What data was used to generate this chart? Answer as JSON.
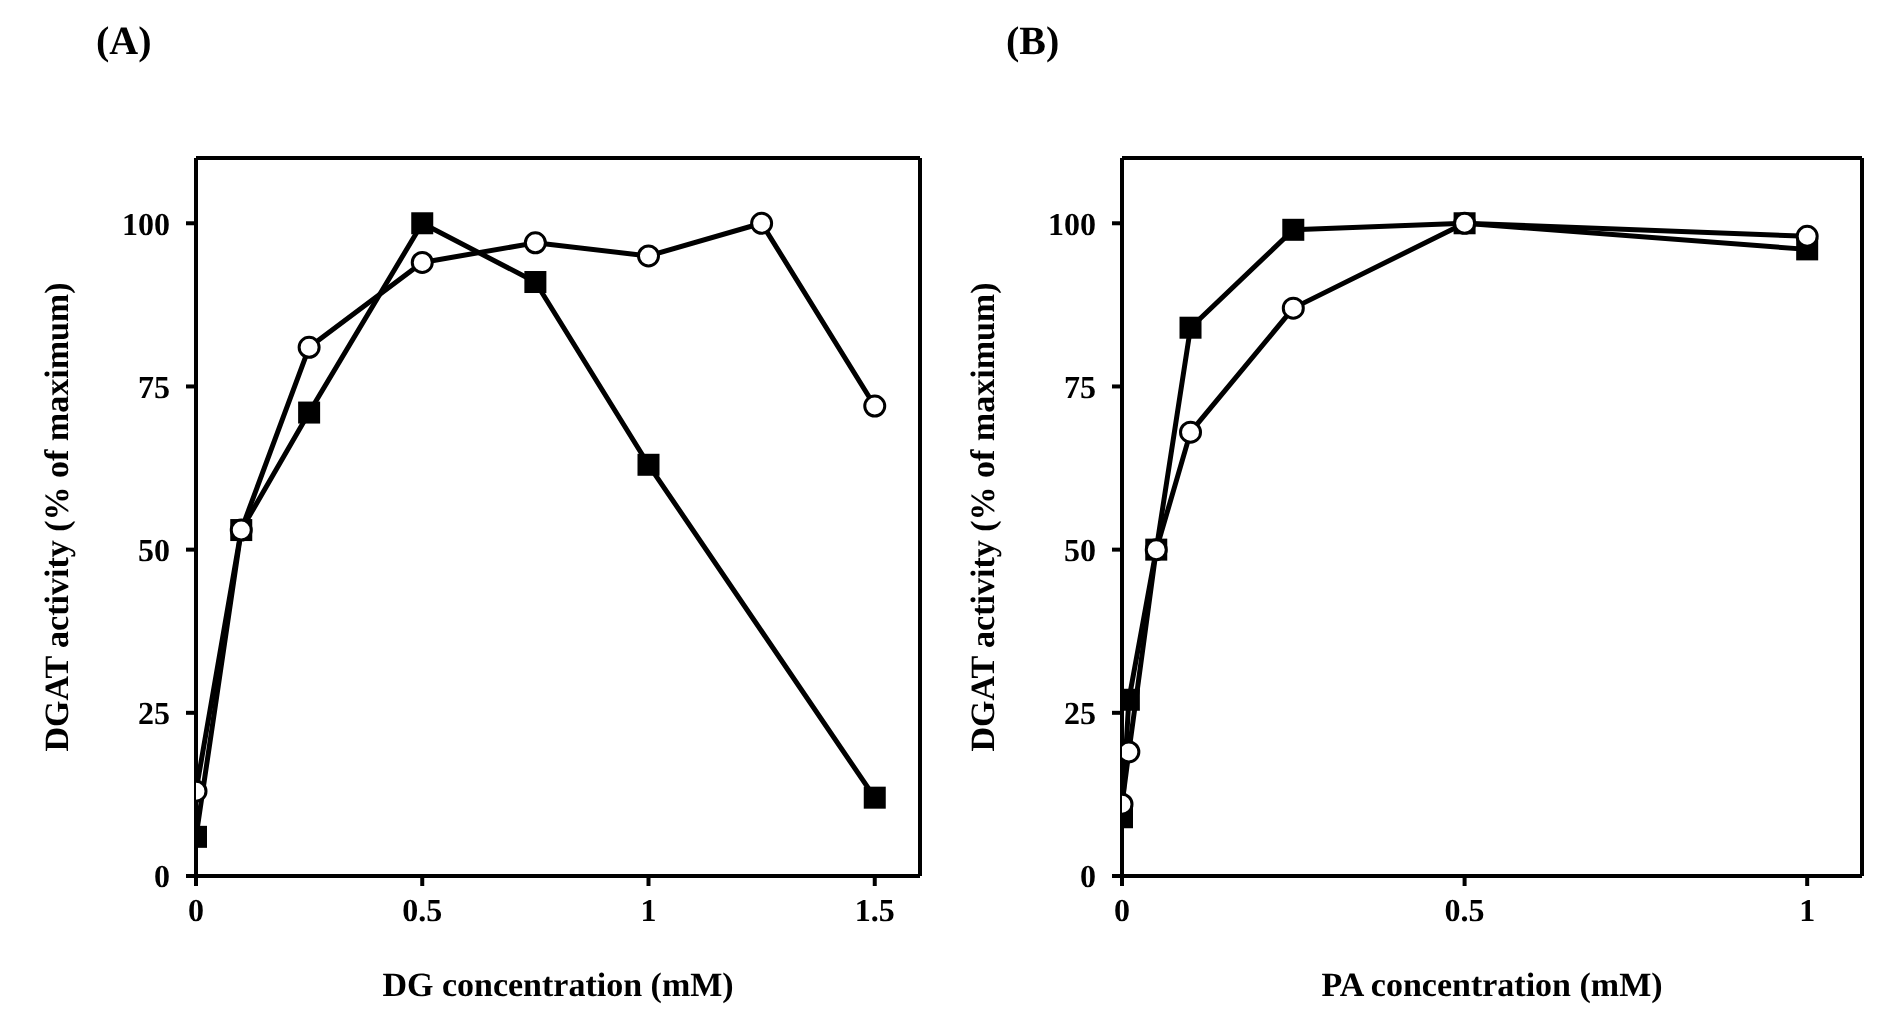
{
  "chart_data": [
    {
      "type": "line",
      "title": "(A)",
      "xlabel": "DG concentration (mM)",
      "ylabel": "DGAT activity (% of maximum)",
      "xlim": [
        0,
        1.6
      ],
      "ylim": [
        0,
        110
      ],
      "xticks": [
        0,
        0.5,
        1,
        1.5
      ],
      "yticks": [
        0,
        25,
        50,
        75,
        100
      ],
      "grid": false,
      "series": [
        {
          "color": "#000000",
          "marker": "square",
          "x": [
            0,
            0.1,
            0.25,
            0.5,
            0.75,
            1,
            1.5
          ],
          "values": [
            6,
            53,
            71,
            100,
            91,
            63,
            12
          ]
        },
        {
          "color": "#000000",
          "marker": "circle",
          "x": [
            0,
            0.1,
            0.25,
            0.5,
            0.75,
            1,
            1.25,
            1.5
          ],
          "values": [
            13,
            53,
            81,
            94,
            97,
            95,
            100,
            72
          ]
        }
      ]
    },
    {
      "type": "line",
      "title": "(B)",
      "xlabel": "PA concentration (mM)",
      "ylabel": "DGAT activity (% of maximum)",
      "xlim": [
        0,
        1.08
      ],
      "ylim": [
        0,
        110
      ],
      "xticks": [
        0,
        0.5,
        1
      ],
      "yticks": [
        0,
        25,
        50,
        75,
        100
      ],
      "grid": false,
      "series": [
        {
          "color": "#000000",
          "marker": "square",
          "x": [
            0,
            0.01,
            0.05,
            0.1,
            0.25,
            0.5,
            1
          ],
          "values": [
            9,
            27,
            50,
            84,
            99,
            100,
            96
          ]
        },
        {
          "color": "#000000",
          "marker": "circle",
          "x": [
            0,
            0.01,
            0.05,
            0.1,
            0.25,
            0.5,
            1
          ],
          "values": [
            11,
            19,
            50,
            68,
            87,
            100,
            98
          ]
        }
      ]
    }
  ]
}
